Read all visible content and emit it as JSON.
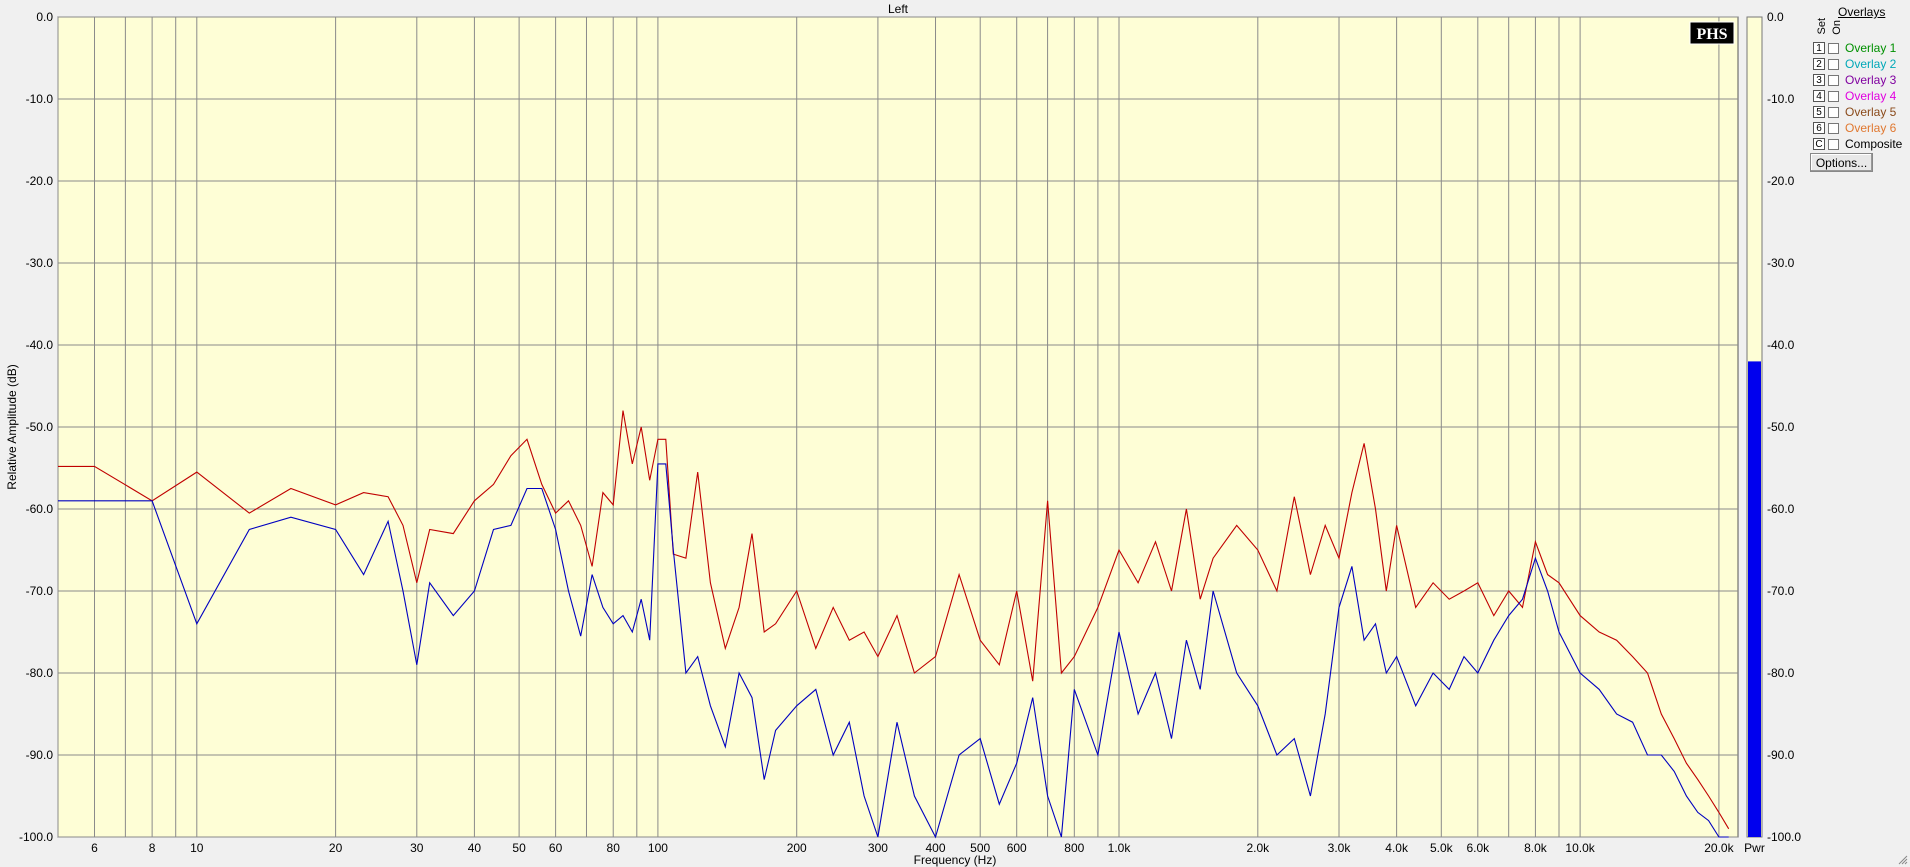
{
  "colors": {
    "plot_bg": "#fefed6",
    "grid": "#8a8a8a",
    "series1": "#c00000",
    "series2": "#0000c0",
    "meter_fill": "#0000ee",
    "meter_bg": "#fefed6"
  },
  "chart_data": {
    "type": "line",
    "title": "Left",
    "xlabel": "Frequency (Hz)",
    "ylabel": "Relative Amplitude (dB)",
    "xscale": "log",
    "xlim": [
      5,
      22000
    ],
    "ylim": [
      -100,
      0
    ],
    "grid": true,
    "xticks": [
      6,
      8,
      10,
      20,
      30,
      40,
      50,
      60,
      80,
      100,
      200,
      300,
      400,
      500,
      600,
      800,
      1000,
      2000,
      3000,
      4000,
      5000,
      6000,
      8000,
      10000,
      20000
    ],
    "xtick_labels": [
      "6",
      "8",
      "10",
      "20",
      "30",
      "40",
      "50",
      "60",
      "80",
      "100",
      "200",
      "300",
      "400",
      "500",
      "600",
      "800",
      "1.0k",
      "2.0k",
      "3.0k",
      "4.0k",
      "5.0k",
      "6.0k",
      "8.0k",
      "10.0k",
      "20.0k"
    ],
    "yticks": [
      0,
      -10,
      -20,
      -30,
      -40,
      -50,
      -60,
      -70,
      -80,
      -90,
      -100
    ],
    "ytick_labels": [
      "0.0",
      "-10.0",
      "-20.0",
      "-30.0",
      "-40.0",
      "-50.0",
      "-60.0",
      "-70.0",
      "-80.0",
      "-90.0",
      "-100.0"
    ],
    "series": [
      {
        "color": "#c00000",
        "x": [
          5,
          6,
          8,
          10,
          13,
          16,
          20,
          23,
          26,
          28,
          30,
          32,
          36,
          40,
          44,
          48,
          52,
          56,
          60,
          64,
          68,
          72,
          76,
          80,
          84,
          88,
          92,
          96,
          100,
          104,
          108,
          115,
          122,
          130,
          140,
          150,
          160,
          170,
          180,
          200,
          220,
          240,
          260,
          280,
          300,
          330,
          360,
          400,
          450,
          500,
          550,
          600,
          650,
          700,
          750,
          800,
          900,
          1000,
          1100,
          1200,
          1300,
          1400,
          1500,
          1600,
          1800,
          2000,
          2200,
          2400,
          2600,
          2800,
          3000,
          3200,
          3400,
          3600,
          3800,
          4000,
          4400,
          4800,
          5200,
          5600,
          6000,
          6500,
          7000,
          7500,
          8000,
          8500,
          9000,
          10000,
          11000,
          12000,
          13000,
          14000,
          15000,
          16000,
          17000,
          18000,
          19000,
          20000,
          21000
        ],
        "y": [
          -54.8,
          -54.8,
          -59.0,
          -55.5,
          -60.5,
          -57.5,
          -59.5,
          -58.0,
          -58.5,
          -62.0,
          -69.0,
          -62.5,
          -63.0,
          -59.0,
          -57.0,
          -53.5,
          -51.5,
          -57.0,
          -60.5,
          -59.0,
          -62.0,
          -67.0,
          -58.0,
          -59.5,
          -48.0,
          -54.5,
          -50.0,
          -56.5,
          -51.5,
          -51.5,
          -65.5,
          -66.0,
          -55.5,
          -69.0,
          -77.0,
          -72.0,
          -63.0,
          -75.0,
          -74.0,
          -70.0,
          -77.0,
          -72.0,
          -76.0,
          -75.0,
          -78.0,
          -73.0,
          -80.0,
          -78.0,
          -68.0,
          -76.0,
          -79.0,
          -70.0,
          -81.0,
          -59.0,
          -80.0,
          -78.0,
          -72.0,
          -65.0,
          -69.0,
          -64.0,
          -70.0,
          -60.0,
          -71.0,
          -66.0,
          -62.0,
          -65.0,
          -70.0,
          -58.5,
          -68.0,
          -62.0,
          -66.0,
          -58.0,
          -52.0,
          -60.0,
          -70.0,
          -62.0,
          -72.0,
          -69.0,
          -71.0,
          -70.0,
          -69.0,
          -73.0,
          -70.0,
          -72.0,
          -64.0,
          -68.0,
          -69.0,
          -73.0,
          -75.0,
          -76.0,
          -78.0,
          -80.0,
          -85.0,
          -88.0,
          -91.0,
          -93.0,
          -95.0,
          -97.0,
          -99.0
        ]
      },
      {
        "color": "#0000c0",
        "x": [
          5,
          6,
          8,
          10,
          13,
          16,
          20,
          23,
          26,
          28,
          30,
          32,
          36,
          40,
          44,
          48,
          52,
          56,
          60,
          64,
          68,
          72,
          76,
          80,
          84,
          88,
          92,
          96,
          100,
          104,
          108,
          115,
          122,
          130,
          140,
          150,
          160,
          170,
          180,
          200,
          220,
          240,
          260,
          280,
          300,
          330,
          360,
          400,
          450,
          500,
          550,
          600,
          650,
          700,
          750,
          800,
          900,
          1000,
          1100,
          1200,
          1300,
          1400,
          1500,
          1600,
          1800,
          2000,
          2200,
          2400,
          2600,
          2800,
          3000,
          3200,
          3400,
          3600,
          3800,
          4000,
          4400,
          4800,
          5200,
          5600,
          6000,
          6500,
          7000,
          7500,
          8000,
          8500,
          9000,
          10000,
          11000,
          12000,
          13000,
          14000,
          15000,
          16000,
          17000,
          18000,
          19000,
          20000,
          21000
        ],
        "y": [
          -59.0,
          -59.0,
          -59.0,
          -74.0,
          -62.5,
          -61.0,
          -62.5,
          -68.0,
          -61.5,
          -70.0,
          -79.0,
          -69.0,
          -73.0,
          -70.0,
          -62.5,
          -62.0,
          -57.5,
          -57.5,
          -62.5,
          -70.0,
          -75.5,
          -68.0,
          -72.0,
          -74.0,
          -73.0,
          -75.0,
          -71.0,
          -76.0,
          -54.5,
          -54.5,
          -65.0,
          -80.0,
          -78.0,
          -84.0,
          -89.0,
          -80.0,
          -83.0,
          -93.0,
          -87.0,
          -84.0,
          -82.0,
          -90.0,
          -86.0,
          -95.0,
          -100.0,
          -86.0,
          -95.0,
          -100.0,
          -90.0,
          -88.0,
          -96.0,
          -91.0,
          -83.0,
          -95.0,
          -100.0,
          -82.0,
          -90.0,
          -75.0,
          -85.0,
          -80.0,
          -88.0,
          -76.0,
          -82.0,
          -70.0,
          -80.0,
          -84.0,
          -90.0,
          -88.0,
          -95.0,
          -85.0,
          -72.0,
          -67.0,
          -76.0,
          -74.0,
          -80.0,
          -78.0,
          -84.0,
          -80.0,
          -82.0,
          -78.0,
          -80.0,
          -76.0,
          -73.0,
          -71.0,
          -66.0,
          -70.0,
          -75.0,
          -80.0,
          -82.0,
          -85.0,
          -86.0,
          -90.0,
          -90.0,
          -92.0,
          -95.0,
          -97.0,
          -98.0,
          -100.0,
          -100.0
        ]
      }
    ],
    "meter": {
      "label": "Pwr",
      "level_db": -42.0
    }
  },
  "overlays": {
    "title": "Overlays",
    "set_header": "Set",
    "on_header": "On",
    "items": [
      {
        "set": "1",
        "label": "Overlay 1",
        "color": "#009000"
      },
      {
        "set": "2",
        "label": "Overlay 2",
        "color": "#00a8b8"
      },
      {
        "set": "3",
        "label": "Overlay 3",
        "color": "#8000a0"
      },
      {
        "set": "4",
        "label": "Overlay 4",
        "color": "#e000e0"
      },
      {
        "set": "5",
        "label": "Overlay 5",
        "color": "#8a4a1a"
      },
      {
        "set": "6",
        "label": "Overlay 6",
        "color": "#e07830"
      },
      {
        "set": "C",
        "label": "Composite",
        "color": "#000000"
      }
    ],
    "options_label": "Options..."
  },
  "logo": "PHS"
}
